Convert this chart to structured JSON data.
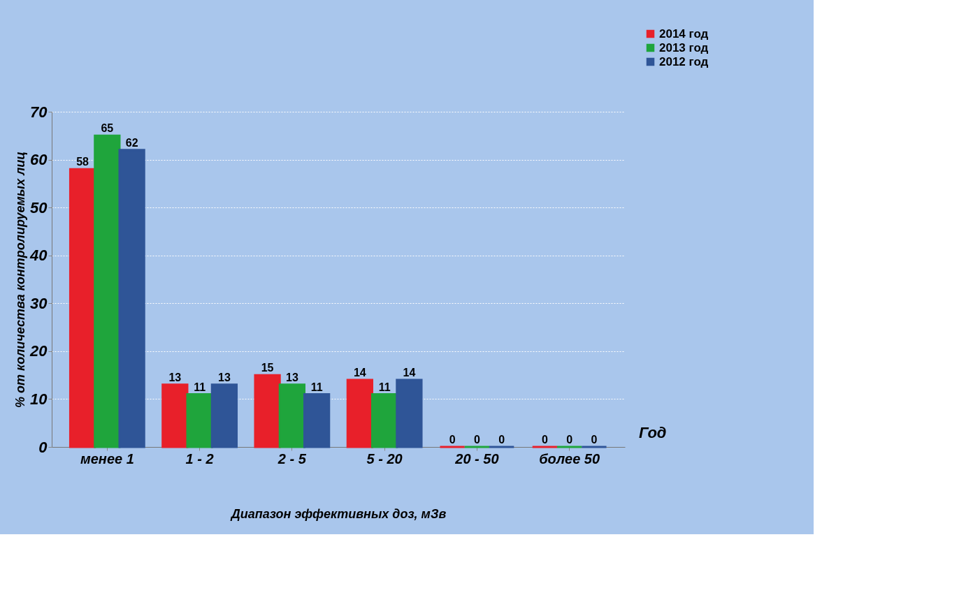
{
  "chart_data": {
    "type": "bar",
    "xlabel": "Диапазон эффективных доз, мЗв",
    "ylabel": "% от количества контролируемых лиц",
    "categories": [
      "менее 1",
      "1 - 2",
      "2 - 5",
      "5 - 20",
      "20 - 50",
      "более 50"
    ],
    "series": [
      {
        "name": "2014 год",
        "color": "#e8202a",
        "values": [
          58,
          13,
          15,
          14,
          0,
          0
        ]
      },
      {
        "name": "2013 год",
        "color": "#1fa53c",
        "values": [
          65,
          11,
          13,
          11,
          0,
          0
        ]
      },
      {
        "name": "2012 год",
        "color": "#2f5597",
        "values": [
          62,
          13,
          11,
          14,
          0,
          0
        ]
      }
    ],
    "ylim": [
      0,
      70
    ],
    "yticks": [
      0,
      10,
      20,
      30,
      40,
      50,
      60,
      70
    ],
    "grid": "y",
    "legend": "top right",
    "data_labels": true,
    "annotations": [
      "Год"
    ]
  }
}
